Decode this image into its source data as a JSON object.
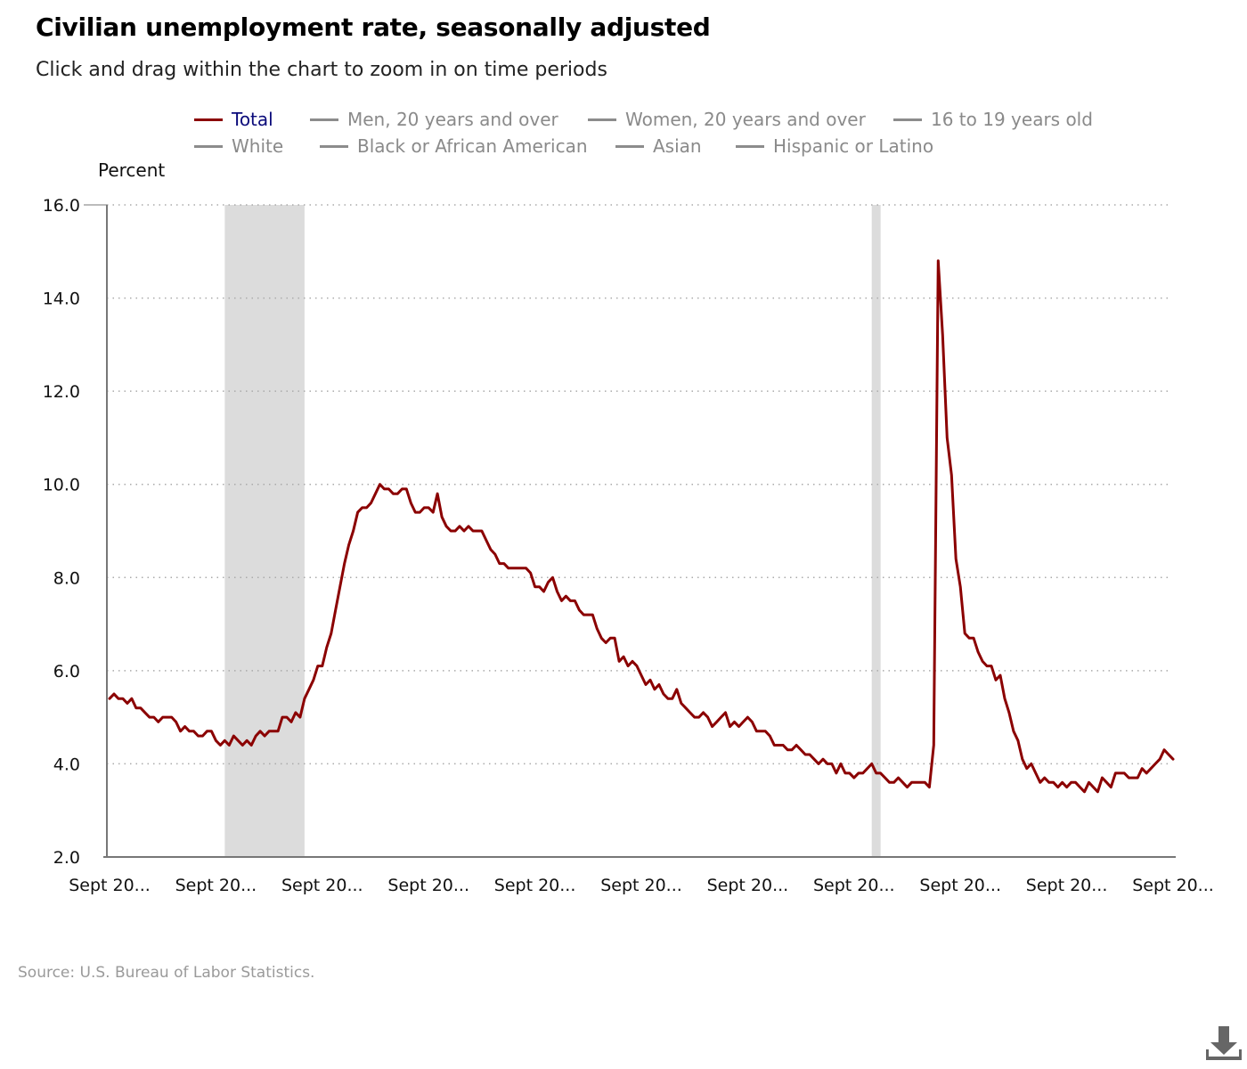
{
  "title": "Civilian unemployment rate, seasonally adjusted",
  "subtitle": "Click and drag within the chart to zoom in on time periods",
  "legend": {
    "row1": [
      {
        "label": "Total",
        "active": true
      },
      {
        "label": "Men, 20 years and over",
        "active": false
      },
      {
        "label": "Women, 20 years and over",
        "active": false
      },
      {
        "label": "16 to 19 years old",
        "active": false
      }
    ],
    "row2": [
      {
        "label": "White",
        "active": false
      },
      {
        "label": "Black or African American",
        "active": false
      },
      {
        "label": "Asian",
        "active": false
      },
      {
        "label": "Hispanic or Latino",
        "active": false
      }
    ]
  },
  "source": "Source: U.S. Bureau of Labor Statistics.",
  "colors": {
    "series": "#8b0000",
    "inactive_legend": "#8a8a8a",
    "active_legend_text": "#0a0a7a",
    "recession_band": "#dcdcdc",
    "grid": "#aaaaaa"
  },
  "icons": {
    "download": "download-icon"
  },
  "chart_data": {
    "type": "line",
    "title": "Civilian unemployment rate, seasonally adjusted",
    "ylabel": "Percent",
    "xlabel": "",
    "ylim": [
      2.0,
      16.0
    ],
    "yticks": [
      "2.0",
      "4.0",
      "6.0",
      "8.0",
      "10.0",
      "12.0",
      "14.0",
      "16.0"
    ],
    "xtick_labels": [
      "Sept 20...",
      "Sept 20...",
      "Sept 20...",
      "Sept 20...",
      "Sept 20...",
      "Sept 20...",
      "Sept 20...",
      "Sept 20...",
      "Sept 20...",
      "Sept 20...",
      "Sept 20..."
    ],
    "grid": "horizontal-dotted",
    "legend_placement": "top",
    "recession_bands": [
      [
        26,
        44
      ],
      [
        172,
        174
      ]
    ],
    "series": [
      {
        "name": "Total",
        "values": [
          5.4,
          5.5,
          5.4,
          5.4,
          5.3,
          5.4,
          5.2,
          5.2,
          5.1,
          5.0,
          5.0,
          4.9,
          5.0,
          5.0,
          5.0,
          4.9,
          4.7,
          4.8,
          4.7,
          4.7,
          4.6,
          4.6,
          4.7,
          4.7,
          4.5,
          4.4,
          4.5,
          4.4,
          4.6,
          4.5,
          4.4,
          4.5,
          4.4,
          4.6,
          4.7,
          4.6,
          4.7,
          4.7,
          4.7,
          5.0,
          5.0,
          4.9,
          5.1,
          5.0,
          5.4,
          5.6,
          5.8,
          6.1,
          6.1,
          6.5,
          6.8,
          7.3,
          7.8,
          8.3,
          8.7,
          9.0,
          9.4,
          9.5,
          9.5,
          9.6,
          9.8,
          10.0,
          9.9,
          9.9,
          9.8,
          9.8,
          9.9,
          9.9,
          9.6,
          9.4,
          9.4,
          9.5,
          9.5,
          9.4,
          9.8,
          9.3,
          9.1,
          9.0,
          9.0,
          9.1,
          9.0,
          9.1,
          9.0,
          9.0,
          9.0,
          8.8,
          8.6,
          8.5,
          8.3,
          8.3,
          8.2,
          8.2,
          8.2,
          8.2,
          8.2,
          8.1,
          7.8,
          7.8,
          7.7,
          7.9,
          8.0,
          7.7,
          7.5,
          7.6,
          7.5,
          7.5,
          7.3,
          7.2,
          7.2,
          7.2,
          6.9,
          6.7,
          6.6,
          6.7,
          6.7,
          6.2,
          6.3,
          6.1,
          6.2,
          6.1,
          5.9,
          5.7,
          5.8,
          5.6,
          5.7,
          5.5,
          5.4,
          5.4,
          5.6,
          5.3,
          5.2,
          5.1,
          5.0,
          5.0,
          5.1,
          5.0,
          4.8,
          4.9,
          5.0,
          5.1,
          4.8,
          4.9,
          4.8,
          4.9,
          5.0,
          4.9,
          4.7,
          4.7,
          4.7,
          4.6,
          4.4,
          4.4,
          4.4,
          4.3,
          4.3,
          4.4,
          4.3,
          4.2,
          4.2,
          4.1,
          4.0,
          4.1,
          4.0,
          4.0,
          3.8,
          4.0,
          3.8,
          3.8,
          3.7,
          3.8,
          3.8,
          3.9,
          4.0,
          3.8,
          3.8,
          3.7,
          3.6,
          3.6,
          3.7,
          3.6,
          3.5,
          3.6,
          3.6,
          3.6,
          3.6,
          3.5,
          4.4,
          14.8,
          13.2,
          11.0,
          10.2,
          8.4,
          7.8,
          6.8,
          6.7,
          6.7,
          6.4,
          6.2,
          6.1,
          6.1,
          5.8,
          5.9,
          5.4,
          5.1,
          4.7,
          4.5,
          4.1,
          3.9,
          4.0,
          3.8,
          3.6,
          3.7,
          3.6,
          3.6,
          3.5,
          3.6,
          3.5,
          3.6,
          3.6,
          3.5,
          3.4,
          3.6,
          3.5,
          3.4,
          3.7,
          3.6,
          3.5,
          3.8,
          3.8,
          3.8,
          3.7,
          3.7,
          3.7,
          3.9,
          3.8,
          3.9,
          4.0,
          4.1,
          4.3,
          4.2,
          4.1
        ]
      }
    ]
  }
}
